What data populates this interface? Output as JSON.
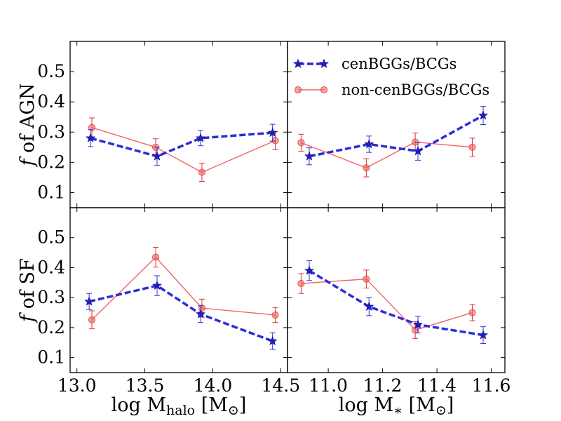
{
  "chart_data": {
    "type": "scatter",
    "layout": "2x2 grid, shared y axis per row, shared x axis per column",
    "legend": {
      "placement": "upper-right panel, top",
      "entries": [
        {
          "label": "cenBGGs/BCGs",
          "color": "#2d2dd9",
          "marker": "star",
          "line": "dashed"
        },
        {
          "label": "non-cenBGGs/BCGs",
          "color": "#f06464",
          "marker": "circle",
          "line": "solid"
        }
      ]
    },
    "rows": [
      {
        "ylabel_italic": "f",
        "ylabel_rest": " of AGN",
        "ylim": [
          0.05,
          0.6
        ],
        "yticks": [
          0.1,
          0.2,
          0.3,
          0.4,
          0.5
        ],
        "ytick_labels": [
          "0.1",
          "0.2",
          "0.3",
          "0.4",
          "0.5"
        ]
      },
      {
        "ylabel_italic": "f",
        "ylabel_rest": " of SF",
        "ylim": [
          0.05,
          0.6
        ],
        "yticks": [
          0.1,
          0.2,
          0.3,
          0.4,
          0.5
        ],
        "ytick_labels": [
          "0.1",
          "0.2",
          "0.3",
          "0.4",
          "0.5"
        ]
      }
    ],
    "cols": [
      {
        "xlabel_prefix": "log M",
        "xlabel_sub": "halo",
        "xlabel_suffix": " [M",
        "xlabel_sub2": "⊙",
        "xlabel_end": "]",
        "xlim": [
          12.95,
          14.55
        ],
        "xticks": [
          13.0,
          13.5,
          14.0,
          14.5
        ],
        "xtick_labels": [
          "13.0",
          "13.5",
          "14.0",
          "14.5"
        ]
      },
      {
        "xlabel_prefix": "log M",
        "xlabel_sub": "∗",
        "xlabel_suffix": " [M",
        "xlabel_sub2": "⊙",
        "xlabel_end": "]",
        "xlim": [
          10.85,
          11.65
        ],
        "xticks": [
          11.0,
          11.2,
          11.4,
          11.6
        ],
        "xtick_labels": [
          "11.0",
          "11.2",
          "11.4",
          "11.6"
        ]
      }
    ],
    "panels": [
      {
        "row": 0,
        "col": 0,
        "series": [
          {
            "name": "cenBGGs/BCGs",
            "x": [
              13.1,
              13.59,
              13.91,
              14.44
            ],
            "y": [
              0.28,
              0.22,
              0.28,
              0.298
            ],
            "err": [
              0.028,
              0.03,
              0.025,
              0.028
            ]
          },
          {
            "name": "non-cenBGGs/BCGs",
            "x": [
              13.11,
              13.58,
              13.92,
              14.46
            ],
            "y": [
              0.315,
              0.25,
              0.167,
              0.272
            ],
            "err": [
              0.032,
              0.028,
              0.03,
              0.03
            ]
          }
        ]
      },
      {
        "row": 0,
        "col": 1,
        "series": [
          {
            "name": "cenBGGs/BCGs",
            "x": [
              10.93,
              11.15,
              11.33,
              11.57
            ],
            "y": [
              0.22,
              0.26,
              0.237,
              0.355
            ],
            "err": [
              0.028,
              0.027,
              0.03,
              0.03
            ]
          },
          {
            "name": "non-cenBGGs/BCGs",
            "x": [
              10.9,
              11.14,
              11.32,
              11.53
            ],
            "y": [
              0.265,
              0.182,
              0.267,
              0.25
            ],
            "err": [
              0.028,
              0.03,
              0.03,
              0.03
            ]
          }
        ]
      },
      {
        "row": 1,
        "col": 0,
        "series": [
          {
            "name": "cenBGGs/BCGs",
            "x": [
              13.09,
              13.59,
              13.91,
              14.44
            ],
            "y": [
              0.287,
              0.34,
              0.245,
              0.155
            ],
            "err": [
              0.027,
              0.033,
              0.028,
              0.028
            ]
          },
          {
            "name": "non-cenBGGs/BCGs",
            "x": [
              13.11,
              13.58,
              13.92,
              14.46
            ],
            "y": [
              0.226,
              0.435,
              0.265,
              0.242
            ],
            "err": [
              0.03,
              0.033,
              0.03,
              0.025
            ]
          }
        ]
      },
      {
        "row": 1,
        "col": 1,
        "series": [
          {
            "name": "cenBGGs/BCGs",
            "x": [
              10.93,
              11.15,
              11.33,
              11.57
            ],
            "y": [
              0.39,
              0.27,
              0.21,
              0.175
            ],
            "err": [
              0.033,
              0.03,
              0.028,
              0.028
            ]
          },
          {
            "name": "non-cenBGGs/BCGs",
            "x": [
              10.9,
              11.14,
              11.32,
              11.53
            ],
            "y": [
              0.347,
              0.362,
              0.192,
              0.25
            ],
            "err": [
              0.033,
              0.03,
              0.028,
              0.027
            ]
          }
        ]
      }
    ]
  }
}
